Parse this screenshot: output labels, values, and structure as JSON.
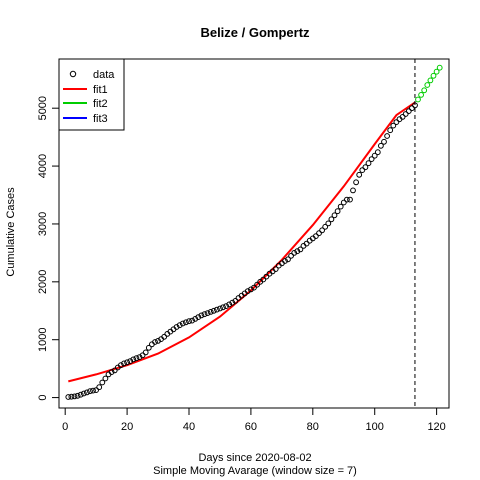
{
  "chart_data": {
    "type": "scatter",
    "title": "Belize / Gompertz",
    "xlabel": "Days since 2020-08-02",
    "sublabel": "Simple Moving Avarage (window size = 7)",
    "ylabel": "Cumulative Cases",
    "xlim": [
      -2,
      124
    ],
    "ylim": [
      -180,
      5850
    ],
    "xticks": [
      0,
      20,
      40,
      60,
      80,
      100,
      120
    ],
    "yticks": [
      0,
      1000,
      2000,
      3000,
      4000,
      5000
    ],
    "vline_x": 113,
    "legend": {
      "position": "top-left",
      "entries": [
        {
          "label": "data",
          "kind": "point",
          "color": "#000000"
        },
        {
          "label": "fit1",
          "kind": "line",
          "color": "#ff0000"
        },
        {
          "label": "fit2",
          "kind": "line",
          "color": "#00cd00"
        },
        {
          "label": "fit3",
          "kind": "line",
          "color": "#0000ff"
        }
      ]
    },
    "series": [
      {
        "name": "data",
        "kind": "points",
        "color": "#000000",
        "points": [
          [
            1,
            10
          ],
          [
            2,
            15
          ],
          [
            3,
            20
          ],
          [
            4,
            30
          ],
          [
            5,
            50
          ],
          [
            6,
            70
          ],
          [
            7,
            90
          ],
          [
            8,
            110
          ],
          [
            9,
            120
          ],
          [
            10,
            130
          ],
          [
            11,
            180
          ],
          [
            12,
            260
          ],
          [
            13,
            330
          ],
          [
            14,
            400
          ],
          [
            15,
            440
          ],
          [
            16,
            470
          ],
          [
            17,
            520
          ],
          [
            18,
            560
          ],
          [
            19,
            590
          ],
          [
            20,
            610
          ],
          [
            21,
            630
          ],
          [
            22,
            660
          ],
          [
            23,
            680
          ],
          [
            24,
            700
          ],
          [
            25,
            730
          ],
          [
            26,
            780
          ],
          [
            27,
            860
          ],
          [
            28,
            920
          ],
          [
            29,
            960
          ],
          [
            30,
            980
          ],
          [
            31,
            1010
          ],
          [
            32,
            1050
          ],
          [
            33,
            1100
          ],
          [
            34,
            1140
          ],
          [
            35,
            1180
          ],
          [
            36,
            1220
          ],
          [
            37,
            1250
          ],
          [
            38,
            1280
          ],
          [
            39,
            1300
          ],
          [
            40,
            1320
          ],
          [
            41,
            1330
          ],
          [
            42,
            1360
          ],
          [
            43,
            1390
          ],
          [
            44,
            1420
          ],
          [
            45,
            1440
          ],
          [
            46,
            1460
          ],
          [
            47,
            1480
          ],
          [
            48,
            1500
          ],
          [
            49,
            1520
          ],
          [
            50,
            1540
          ],
          [
            51,
            1560
          ],
          [
            52,
            1580
          ],
          [
            53,
            1610
          ],
          [
            54,
            1640
          ],
          [
            55,
            1670
          ],
          [
            56,
            1720
          ],
          [
            57,
            1760
          ],
          [
            58,
            1800
          ],
          [
            59,
            1840
          ],
          [
            60,
            1870
          ],
          [
            61,
            1900
          ],
          [
            62,
            1950
          ],
          [
            63,
            2000
          ],
          [
            64,
            2040
          ],
          [
            65,
            2090
          ],
          [
            66,
            2140
          ],
          [
            67,
            2180
          ],
          [
            68,
            2220
          ],
          [
            69,
            2280
          ],
          [
            70,
            2320
          ],
          [
            71,
            2360
          ],
          [
            72,
            2390
          ],
          [
            73,
            2450
          ],
          [
            74,
            2500
          ],
          [
            75,
            2530
          ],
          [
            76,
            2560
          ],
          [
            77,
            2620
          ],
          [
            78,
            2660
          ],
          [
            79,
            2710
          ],
          [
            80,
            2750
          ],
          [
            81,
            2790
          ],
          [
            82,
            2840
          ],
          [
            83,
            2890
          ],
          [
            84,
            2950
          ],
          [
            85,
            3010
          ],
          [
            86,
            3080
          ],
          [
            87,
            3150
          ],
          [
            88,
            3220
          ],
          [
            89,
            3300
          ],
          [
            90,
            3370
          ],
          [
            91,
            3420
          ],
          [
            92,
            3420
          ],
          [
            93,
            3580
          ],
          [
            94,
            3720
          ],
          [
            95,
            3850
          ],
          [
            96,
            3930
          ],
          [
            97,
            3980
          ],
          [
            98,
            4050
          ],
          [
            99,
            4120
          ],
          [
            100,
            4180
          ],
          [
            101,
            4240
          ],
          [
            102,
            4350
          ],
          [
            103,
            4420
          ],
          [
            104,
            4520
          ],
          [
            105,
            4620
          ],
          [
            106,
            4700
          ],
          [
            107,
            4760
          ],
          [
            108,
            4810
          ],
          [
            109,
            4850
          ],
          [
            110,
            4900
          ],
          [
            111,
            4950
          ],
          [
            112,
            5000
          ],
          [
            113,
            5050
          ]
        ]
      },
      {
        "name": "fit2",
        "kind": "points",
        "color": "#00cd00",
        "points": [
          [
            114,
            5150
          ],
          [
            115,
            5230
          ],
          [
            116,
            5310
          ],
          [
            117,
            5400
          ],
          [
            118,
            5480
          ],
          [
            119,
            5560
          ],
          [
            120,
            5630
          ],
          [
            121,
            5700
          ]
        ]
      },
      {
        "name": "fit1",
        "kind": "line",
        "color": "#ff0000",
        "points": [
          [
            1,
            280
          ],
          [
            10,
            400
          ],
          [
            20,
            560
          ],
          [
            30,
            760
          ],
          [
            40,
            1040
          ],
          [
            50,
            1400
          ],
          [
            60,
            1850
          ],
          [
            70,
            2380
          ],
          [
            80,
            2980
          ],
          [
            90,
            3650
          ],
          [
            100,
            4380
          ],
          [
            107,
            4880
          ],
          [
            113,
            5100
          ]
        ]
      }
    ]
  }
}
